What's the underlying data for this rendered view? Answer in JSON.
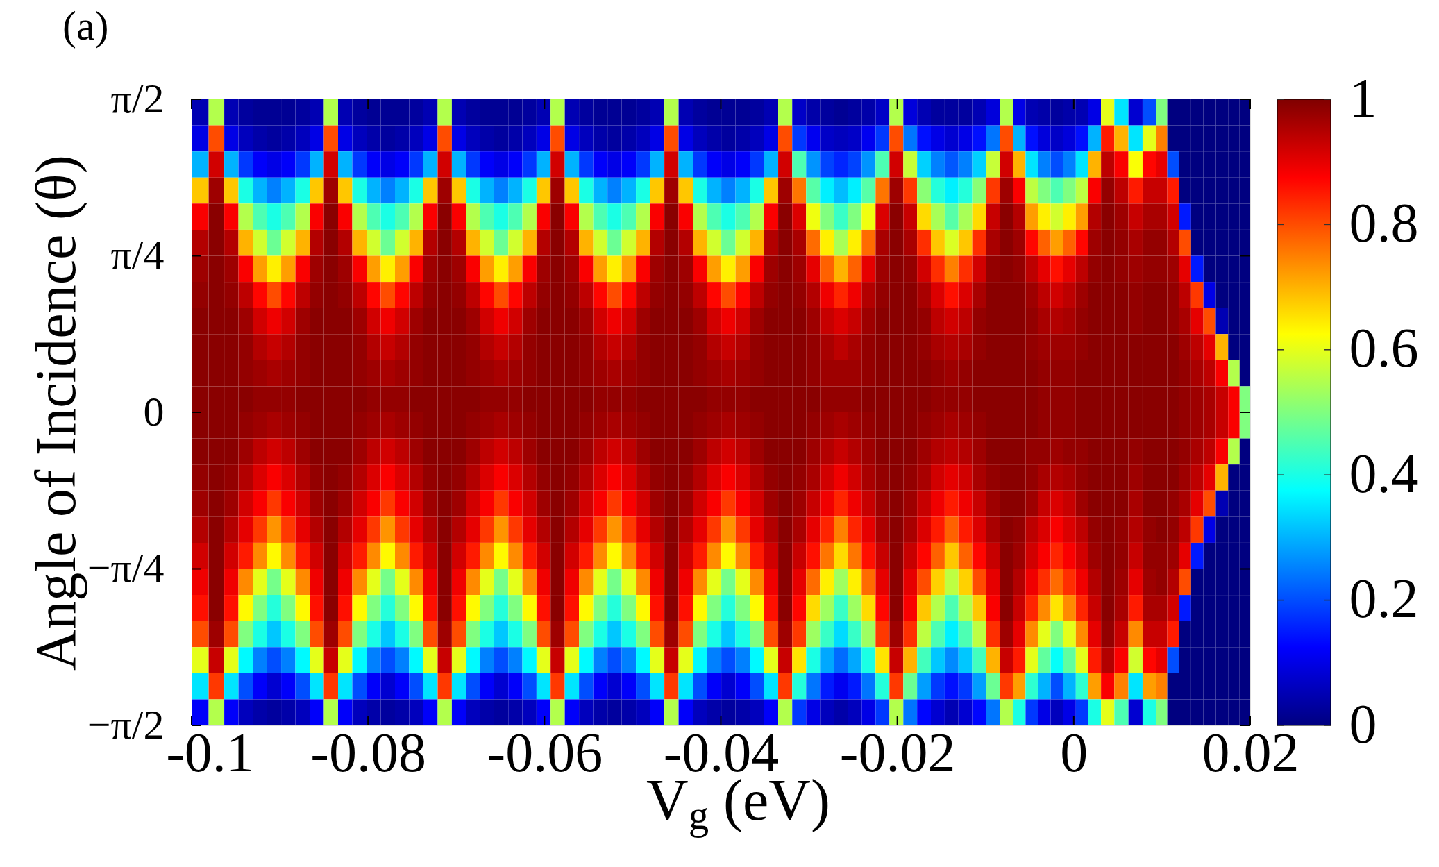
{
  "chart_data": {
    "type": "heatmap",
    "title": "(a)",
    "xlabel": "V$_{g}$ (eV)",
    "ylabel": "Angle of Incidence (θ)",
    "xlim": [
      -0.1,
      0.02
    ],
    "xticks": [
      -0.1,
      -0.08,
      -0.06,
      -0.04,
      -0.02,
      0,
      0.02
    ],
    "ylim": [
      -1.5708,
      1.5708
    ],
    "yticks": [
      {
        "value": -1.5708,
        "label": "−π/2"
      },
      {
        "value": -0.7854,
        "label": "−π/4"
      },
      0,
      {
        "value": 0.7854,
        "label": "π/4"
      },
      {
        "value": 1.5708,
        "label": "π/2"
      }
    ],
    "clim": [
      0,
      1
    ],
    "cticks": [
      0,
      0.2,
      0.4,
      0.6,
      0.8,
      1
    ],
    "x": [
      -0.09903,
      -0.0971,
      -0.09549,
      -0.09388,
      -0.09226,
      -0.09065,
      -0.08904,
      -0.08743,
      -0.08581,
      -0.0842,
      -0.08259,
      -0.08098,
      -0.07936,
      -0.07775,
      -0.07614,
      -0.07453,
      -0.07291,
      -0.0713,
      -0.0697,
      -0.0681,
      -0.0665,
      -0.0649,
      -0.0633,
      -0.0617,
      -0.0601,
      -0.0585,
      -0.05689,
      -0.05528,
      -0.05366,
      -0.05205,
      -0.05044,
      -0.04883,
      -0.04721,
      -0.0456,
      -0.04399,
      -0.04238,
      -0.04076,
      -0.03915,
      -0.03754,
      -0.03593,
      -0.03431,
      -0.0327,
      -0.03113,
      -0.02955,
      -0.02798,
      -0.0264,
      -0.02483,
      -0.02325,
      -0.02168,
      -0.0201,
      -0.01854,
      -0.01698,
      -0.01541,
      -0.01385,
      -0.01229,
      -0.01073,
      -0.00916,
      -0.0076,
      -0.00618,
      -0.00475,
      -0.00333,
      -0.0019,
      -0.00048,
      0.00095,
      0.00238,
      0.0038,
      0.0054,
      0.007,
      0.0086,
      0.01,
      0.0112,
      0.0126,
      0.014,
      0.0154,
      0.0168,
      0.0182,
      0.0194
    ],
    "cells": [
      [
        0.05,
        0.55,
        0.05,
        0.03,
        0.02,
        0.02,
        0.02,
        0.03,
        0.05,
        0.55,
        0.05,
        0.03,
        0.02,
        0.02,
        0.02,
        0.03,
        0.05,
        0.55,
        0.05,
        0.03,
        0.02,
        0.02,
        0.02,
        0.03,
        0.05,
        0.55,
        0.05,
        0.03,
        0.02,
        0.02,
        0.02,
        0.03,
        0.05,
        0.55,
        0.05,
        0.03,
        0.02,
        0.02,
        0.02,
        0.03,
        0.05,
        0.55,
        0.07,
        0.04,
        0.03,
        0.02,
        0.03,
        0.04,
        0.07,
        0.55,
        0.09,
        0.05,
        0.03,
        0.03,
        0.03,
        0.05,
        0.09,
        0.55,
        0.1,
        0.05,
        0.04,
        0.03,
        0.04,
        0.05,
        0.1,
        0.6,
        0.35,
        0.08,
        0.2,
        0.5,
        0,
        0,
        0,
        0,
        0,
        0,
        0
      ],
      [
        0.1,
        0.8,
        0.1,
        0.06,
        0.04,
        0.03,
        0.04,
        0.06,
        0.1,
        0.8,
        0.1,
        0.06,
        0.04,
        0.03,
        0.04,
        0.06,
        0.1,
        0.8,
        0.1,
        0.06,
        0.04,
        0.03,
        0.04,
        0.06,
        0.1,
        0.8,
        0.1,
        0.06,
        0.04,
        0.03,
        0.04,
        0.06,
        0.1,
        0.8,
        0.1,
        0.06,
        0.04,
        0.03,
        0.04,
        0.06,
        0.1,
        0.8,
        0.18,
        0.11,
        0.07,
        0.06,
        0.07,
        0.11,
        0.18,
        0.8,
        0.24,
        0.14,
        0.1,
        0.08,
        0.1,
        0.14,
        0.24,
        0.8,
        0.3,
        0.14,
        0.09,
        0.07,
        0.09,
        0.14,
        0.3,
        0.85,
        0.7,
        0.35,
        0.6,
        0.75,
        0,
        0,
        0,
        0,
        0,
        0,
        0
      ],
      [
        0.3,
        0.92,
        0.3,
        0.18,
        0.12,
        0.1,
        0.12,
        0.18,
        0.3,
        0.92,
        0.3,
        0.18,
        0.12,
        0.1,
        0.12,
        0.18,
        0.3,
        0.92,
        0.3,
        0.18,
        0.12,
        0.1,
        0.12,
        0.18,
        0.3,
        0.92,
        0.3,
        0.18,
        0.12,
        0.1,
        0.12,
        0.18,
        0.3,
        0.92,
        0.3,
        0.18,
        0.12,
        0.1,
        0.12,
        0.18,
        0.3,
        0.92,
        0.45,
        0.27,
        0.19,
        0.16,
        0.19,
        0.27,
        0.45,
        0.92,
        0.57,
        0.33,
        0.25,
        0.21,
        0.25,
        0.33,
        0.57,
        0.92,
        0.7,
        0.35,
        0.25,
        0.2,
        0.25,
        0.35,
        0.7,
        0.94,
        0.88,
        0.62,
        0.87,
        0.9,
        0.2,
        0,
        0,
        0,
        0,
        0,
        0
      ],
      [
        0.68,
        0.97,
        0.68,
        0.4,
        0.3,
        0.25,
        0.3,
        0.4,
        0.68,
        0.97,
        0.68,
        0.4,
        0.3,
        0.25,
        0.3,
        0.4,
        0.68,
        0.97,
        0.68,
        0.4,
        0.3,
        0.25,
        0.3,
        0.4,
        0.68,
        0.97,
        0.68,
        0.4,
        0.3,
        0.25,
        0.3,
        0.4,
        0.68,
        0.97,
        0.68,
        0.4,
        0.3,
        0.25,
        0.3,
        0.4,
        0.68,
        0.97,
        0.76,
        0.46,
        0.36,
        0.31,
        0.36,
        0.46,
        0.76,
        0.97,
        0.82,
        0.51,
        0.41,
        0.36,
        0.41,
        0.51,
        0.82,
        0.97,
        0.88,
        0.56,
        0.5,
        0.45,
        0.5,
        0.56,
        0.88,
        0.98,
        0.94,
        0.85,
        0.93,
        0.93,
        0.85,
        0,
        0,
        0,
        0,
        0,
        0
      ],
      [
        0.88,
        0.99,
        0.88,
        0.55,
        0.45,
        0.4,
        0.45,
        0.55,
        0.88,
        0.99,
        0.88,
        0.55,
        0.45,
        0.4,
        0.45,
        0.55,
        0.88,
        0.99,
        0.88,
        0.55,
        0.45,
        0.4,
        0.45,
        0.55,
        0.88,
        0.99,
        0.88,
        0.55,
        0.45,
        0.4,
        0.45,
        0.55,
        0.88,
        0.99,
        0.88,
        0.55,
        0.45,
        0.4,
        0.45,
        0.55,
        0.88,
        0.99,
        0.91,
        0.61,
        0.5,
        0.43,
        0.5,
        0.61,
        0.91,
        0.99,
        0.93,
        0.66,
        0.54,
        0.46,
        0.54,
        0.66,
        0.93,
        0.99,
        0.95,
        0.72,
        0.64,
        0.58,
        0.64,
        0.72,
        0.95,
        0.99,
        0.97,
        0.93,
        0.96,
        0.96,
        0.92,
        0.15,
        0,
        0,
        0,
        0,
        0
      ],
      [
        0.95,
        0.99,
        0.95,
        0.7,
        0.58,
        0.48,
        0.58,
        0.7,
        0.95,
        0.99,
        0.95,
        0.7,
        0.58,
        0.48,
        0.58,
        0.7,
        0.95,
        0.99,
        0.95,
        0.7,
        0.58,
        0.48,
        0.58,
        0.7,
        0.95,
        0.99,
        0.95,
        0.7,
        0.58,
        0.48,
        0.58,
        0.7,
        0.95,
        0.99,
        0.95,
        0.7,
        0.58,
        0.48,
        0.58,
        0.7,
        0.95,
        0.99,
        0.96,
        0.77,
        0.64,
        0.54,
        0.64,
        0.77,
        0.96,
        0.99,
        0.96,
        0.83,
        0.68,
        0.59,
        0.68,
        0.83,
        0.96,
        0.99,
        0.97,
        0.87,
        0.78,
        0.72,
        0.78,
        0.87,
        0.97,
        0.99,
        0.98,
        0.96,
        0.98,
        0.98,
        0.95,
        0.8,
        0,
        0,
        0,
        0,
        0
      ],
      [
        0.97,
        0.99,
        0.97,
        0.88,
        0.72,
        0.64,
        0.72,
        0.88,
        0.97,
        0.99,
        0.97,
        0.88,
        0.72,
        0.64,
        0.72,
        0.88,
        0.97,
        0.99,
        0.97,
        0.88,
        0.72,
        0.64,
        0.72,
        0.88,
        0.97,
        0.99,
        0.97,
        0.88,
        0.72,
        0.64,
        0.72,
        0.88,
        0.97,
        0.99,
        0.97,
        0.88,
        0.72,
        0.64,
        0.72,
        0.88,
        0.97,
        0.99,
        0.97,
        0.9,
        0.78,
        0.7,
        0.78,
        0.9,
        0.97,
        0.99,
        0.98,
        0.92,
        0.83,
        0.75,
        0.83,
        0.92,
        0.98,
        0.99,
        0.98,
        0.94,
        0.9,
        0.86,
        0.9,
        0.94,
        0.98,
        0.99,
        0.98,
        0.97,
        0.98,
        0.98,
        0.97,
        0.9,
        0.15,
        0,
        0,
        0,
        0
      ],
      [
        0.98,
        0.99,
        0.98,
        0.94,
        0.87,
        0.8,
        0.87,
        0.94,
        0.98,
        0.99,
        0.98,
        0.94,
        0.87,
        0.8,
        0.87,
        0.94,
        0.98,
        0.99,
        0.98,
        0.94,
        0.87,
        0.8,
        0.87,
        0.94,
        0.98,
        0.99,
        0.98,
        0.94,
        0.87,
        0.8,
        0.87,
        0.94,
        0.98,
        0.99,
        0.98,
        0.94,
        0.87,
        0.8,
        0.87,
        0.94,
        0.98,
        0.99,
        0.98,
        0.95,
        0.89,
        0.84,
        0.89,
        0.95,
        0.98,
        0.99,
        0.99,
        0.96,
        0.91,
        0.86,
        0.91,
        0.96,
        0.99,
        0.99,
        0.99,
        0.97,
        0.94,
        0.92,
        0.94,
        0.97,
        0.99,
        0.99,
        0.99,
        0.98,
        0.99,
        0.99,
        0.98,
        0.94,
        0.82,
        0.1,
        0,
        0,
        0
      ],
      [
        0.99,
        0.99,
        0.99,
        0.97,
        0.92,
        0.89,
        0.92,
        0.97,
        0.99,
        0.99,
        0.99,
        0.97,
        0.92,
        0.89,
        0.92,
        0.97,
        0.99,
        0.99,
        0.99,
        0.97,
        0.92,
        0.89,
        0.92,
        0.97,
        0.99,
        0.99,
        0.99,
        0.97,
        0.92,
        0.89,
        0.92,
        0.97,
        0.99,
        0.99,
        0.99,
        0.97,
        0.92,
        0.89,
        0.92,
        0.97,
        0.99,
        0.99,
        0.99,
        0.97,
        0.93,
        0.91,
        0.93,
        0.97,
        0.99,
        0.99,
        0.99,
        0.98,
        0.94,
        0.92,
        0.94,
        0.98,
        0.99,
        0.99,
        0.99,
        0.98,
        0.96,
        0.95,
        0.96,
        0.98,
        0.99,
        0.99,
        0.99,
        0.98,
        0.99,
        0.99,
        0.98,
        0.96,
        0.9,
        0.8,
        0.05,
        0,
        0
      ],
      [
        0.99,
        0.99,
        0.99,
        0.98,
        0.95,
        0.93,
        0.95,
        0.98,
        0.99,
        0.99,
        0.99,
        0.98,
        0.95,
        0.93,
        0.95,
        0.98,
        0.99,
        0.99,
        0.99,
        0.98,
        0.95,
        0.93,
        0.95,
        0.98,
        0.99,
        0.99,
        0.99,
        0.98,
        0.95,
        0.93,
        0.95,
        0.98,
        0.99,
        0.99,
        0.99,
        0.98,
        0.95,
        0.93,
        0.95,
        0.98,
        0.99,
        0.99,
        0.99,
        0.98,
        0.96,
        0.94,
        0.96,
        0.98,
        0.99,
        0.99,
        0.99,
        0.98,
        0.96,
        0.95,
        0.96,
        0.98,
        0.99,
        0.99,
        0.99,
        0.98,
        0.97,
        0.97,
        0.97,
        0.98,
        0.99,
        0.99,
        0.99,
        0.99,
        0.99,
        0.99,
        0.99,
        0.97,
        0.94,
        0.9,
        0.7,
        0,
        0
      ],
      [
        0.99,
        0.99,
        0.99,
        0.98,
        0.97,
        0.96,
        0.97,
        0.98,
        0.99,
        0.99,
        0.99,
        0.98,
        0.97,
        0.96,
        0.97,
        0.98,
        0.99,
        0.99,
        0.99,
        0.98,
        0.97,
        0.96,
        0.97,
        0.98,
        0.99,
        0.99,
        0.99,
        0.98,
        0.97,
        0.96,
        0.97,
        0.98,
        0.99,
        0.99,
        0.99,
        0.98,
        0.97,
        0.96,
        0.97,
        0.98,
        0.99,
        0.99,
        0.99,
        0.98,
        0.97,
        0.97,
        0.97,
        0.98,
        0.99,
        0.99,
        0.99,
        0.99,
        0.98,
        0.97,
        0.98,
        0.99,
        0.99,
        0.99,
        0.99,
        0.99,
        0.98,
        0.98,
        0.98,
        0.99,
        0.99,
        0.99,
        0.99,
        0.99,
        0.99,
        0.99,
        0.99,
        0.98,
        0.96,
        0.94,
        0.88,
        0.55,
        0
      ],
      [
        0.99,
        0.99,
        0.99,
        0.99,
        0.98,
        0.98,
        0.98,
        0.99,
        0.99,
        0.99,
        0.99,
        0.99,
        0.98,
        0.98,
        0.98,
        0.99,
        0.99,
        0.99,
        0.99,
        0.99,
        0.98,
        0.98,
        0.98,
        0.99,
        0.99,
        0.99,
        0.99,
        0.99,
        0.98,
        0.98,
        0.98,
        0.99,
        0.99,
        0.99,
        0.99,
        0.99,
        0.98,
        0.98,
        0.98,
        0.99,
        0.99,
        0.99,
        0.99,
        0.99,
        0.98,
        0.98,
        0.98,
        0.99,
        0.99,
        0.99,
        0.99,
        0.99,
        0.98,
        0.98,
        0.98,
        0.99,
        0.99,
        0.99,
        0.99,
        0.99,
        0.98,
        0.98,
        0.98,
        0.99,
        0.99,
        0.99,
        0.99,
        0.99,
        0.99,
        0.99,
        0.99,
        0.98,
        0.97,
        0.96,
        0.93,
        0.88,
        0.5
      ],
      [
        0.99,
        0.99,
        0.99,
        0.98,
        0.97,
        0.96,
        0.97,
        0.98,
        0.99,
        0.99,
        0.99,
        0.98,
        0.97,
        0.96,
        0.97,
        0.98,
        0.99,
        0.99,
        0.99,
        0.98,
        0.97,
        0.96,
        0.97,
        0.98,
        0.99,
        0.99,
        0.99,
        0.98,
        0.97,
        0.96,
        0.97,
        0.98,
        0.99,
        0.99,
        0.99,
        0.98,
        0.97,
        0.96,
        0.97,
        0.98,
        0.99,
        0.99,
        0.99,
        0.98,
        0.97,
        0.96,
        0.97,
        0.98,
        0.99,
        0.99,
        0.99,
        0.98,
        0.97,
        0.96,
        0.97,
        0.98,
        0.99,
        0.99,
        0.99,
        0.99,
        0.98,
        0.98,
        0.98,
        0.99,
        0.99,
        0.99,
        0.99,
        0.99,
        0.99,
        0.99,
        0.99,
        0.98,
        0.97,
        0.96,
        0.93,
        0.88,
        0.5
      ],
      [
        0.99,
        0.99,
        0.99,
        0.97,
        0.94,
        0.92,
        0.94,
        0.97,
        0.99,
        0.99,
        0.99,
        0.97,
        0.94,
        0.92,
        0.94,
        0.97,
        0.99,
        0.99,
        0.99,
        0.97,
        0.94,
        0.92,
        0.94,
        0.97,
        0.99,
        0.99,
        0.99,
        0.97,
        0.94,
        0.92,
        0.94,
        0.97,
        0.99,
        0.99,
        0.99,
        0.97,
        0.94,
        0.92,
        0.94,
        0.97,
        0.99,
        0.99,
        0.99,
        0.97,
        0.95,
        0.93,
        0.95,
        0.97,
        0.99,
        0.99,
        0.99,
        0.97,
        0.95,
        0.94,
        0.95,
        0.97,
        0.99,
        0.99,
        0.99,
        0.98,
        0.98,
        0.97,
        0.98,
        0.98,
        0.99,
        0.99,
        0.99,
        0.98,
        0.99,
        0.99,
        0.99,
        0.98,
        0.96,
        0.94,
        0.88,
        0.55,
        0
      ],
      [
        0.98,
        0.99,
        0.98,
        0.95,
        0.91,
        0.88,
        0.91,
        0.95,
        0.98,
        0.99,
        0.98,
        0.95,
        0.91,
        0.88,
        0.91,
        0.95,
        0.98,
        0.99,
        0.98,
        0.95,
        0.91,
        0.88,
        0.91,
        0.95,
        0.98,
        0.99,
        0.98,
        0.95,
        0.91,
        0.88,
        0.91,
        0.95,
        0.98,
        0.99,
        0.98,
        0.95,
        0.91,
        0.88,
        0.91,
        0.95,
        0.98,
        0.99,
        0.98,
        0.96,
        0.92,
        0.89,
        0.92,
        0.96,
        0.98,
        0.99,
        0.98,
        0.96,
        0.92,
        0.9,
        0.92,
        0.96,
        0.98,
        0.99,
        0.99,
        0.98,
        0.96,
        0.95,
        0.96,
        0.98,
        0.99,
        0.99,
        0.99,
        0.97,
        0.99,
        0.99,
        0.99,
        0.97,
        0.94,
        0.9,
        0.7,
        0,
        0
      ],
      [
        0.97,
        0.99,
        0.97,
        0.92,
        0.88,
        0.82,
        0.88,
        0.92,
        0.97,
        0.99,
        0.97,
        0.92,
        0.88,
        0.82,
        0.88,
        0.92,
        0.97,
        0.99,
        0.97,
        0.92,
        0.88,
        0.82,
        0.88,
        0.92,
        0.97,
        0.99,
        0.97,
        0.92,
        0.88,
        0.82,
        0.88,
        0.92,
        0.97,
        0.99,
        0.97,
        0.92,
        0.88,
        0.82,
        0.88,
        0.92,
        0.97,
        0.99,
        0.97,
        0.93,
        0.89,
        0.84,
        0.89,
        0.93,
        0.97,
        0.99,
        0.97,
        0.93,
        0.89,
        0.85,
        0.89,
        0.93,
        0.97,
        0.99,
        0.99,
        0.97,
        0.93,
        0.91,
        0.93,
        0.97,
        0.99,
        0.99,
        0.99,
        0.96,
        0.99,
        0.99,
        0.98,
        0.96,
        0.9,
        0.8,
        0.05,
        0,
        0
      ],
      [
        0.95,
        0.99,
        0.95,
        0.9,
        0.82,
        0.73,
        0.82,
        0.9,
        0.95,
        0.99,
        0.95,
        0.9,
        0.82,
        0.73,
        0.82,
        0.9,
        0.95,
        0.99,
        0.95,
        0.9,
        0.82,
        0.73,
        0.82,
        0.9,
        0.95,
        0.99,
        0.95,
        0.9,
        0.82,
        0.73,
        0.82,
        0.9,
        0.95,
        0.99,
        0.95,
        0.9,
        0.82,
        0.73,
        0.82,
        0.9,
        0.95,
        0.99,
        0.96,
        0.9,
        0.84,
        0.75,
        0.84,
        0.9,
        0.96,
        0.99,
        0.96,
        0.91,
        0.85,
        0.78,
        0.85,
        0.91,
        0.96,
        0.99,
        0.98,
        0.94,
        0.91,
        0.88,
        0.91,
        0.94,
        0.98,
        0.99,
        0.98,
        0.95,
        0.98,
        0.99,
        0.98,
        0.94,
        0.82,
        0.1,
        0,
        0,
        0
      ],
      [
        0.92,
        0.99,
        0.92,
        0.85,
        0.74,
        0.63,
        0.74,
        0.85,
        0.92,
        0.99,
        0.92,
        0.85,
        0.74,
        0.63,
        0.74,
        0.85,
        0.92,
        0.99,
        0.92,
        0.85,
        0.74,
        0.63,
        0.74,
        0.85,
        0.92,
        0.99,
        0.92,
        0.85,
        0.74,
        0.63,
        0.74,
        0.85,
        0.92,
        0.99,
        0.92,
        0.85,
        0.74,
        0.63,
        0.74,
        0.85,
        0.92,
        0.99,
        0.93,
        0.86,
        0.76,
        0.66,
        0.76,
        0.86,
        0.93,
        0.99,
        0.93,
        0.87,
        0.78,
        0.68,
        0.78,
        0.87,
        0.93,
        0.99,
        0.97,
        0.92,
        0.88,
        0.84,
        0.88,
        0.92,
        0.97,
        0.99,
        0.98,
        0.93,
        0.98,
        0.98,
        0.97,
        0.9,
        0.15,
        0,
        0,
        0,
        0
      ],
      [
        0.89,
        0.99,
        0.89,
        0.74,
        0.6,
        0.49,
        0.6,
        0.74,
        0.89,
        0.99,
        0.89,
        0.74,
        0.6,
        0.49,
        0.6,
        0.74,
        0.89,
        0.99,
        0.89,
        0.74,
        0.6,
        0.49,
        0.6,
        0.74,
        0.89,
        0.99,
        0.89,
        0.74,
        0.6,
        0.49,
        0.6,
        0.74,
        0.89,
        0.99,
        0.89,
        0.74,
        0.6,
        0.49,
        0.6,
        0.74,
        0.89,
        0.99,
        0.9,
        0.77,
        0.64,
        0.53,
        0.64,
        0.77,
        0.9,
        0.99,
        0.9,
        0.8,
        0.67,
        0.56,
        0.67,
        0.8,
        0.9,
        0.99,
        0.95,
        0.89,
        0.83,
        0.77,
        0.83,
        0.89,
        0.95,
        0.99,
        0.97,
        0.9,
        0.97,
        0.98,
        0.95,
        0.8,
        0,
        0,
        0,
        0,
        0
      ],
      [
        0.86,
        0.99,
        0.86,
        0.63,
        0.5,
        0.41,
        0.5,
        0.63,
        0.86,
        0.99,
        0.86,
        0.63,
        0.5,
        0.41,
        0.5,
        0.63,
        0.86,
        0.99,
        0.86,
        0.63,
        0.5,
        0.41,
        0.5,
        0.63,
        0.86,
        0.99,
        0.86,
        0.63,
        0.5,
        0.41,
        0.5,
        0.63,
        0.86,
        0.99,
        0.86,
        0.63,
        0.5,
        0.41,
        0.5,
        0.63,
        0.86,
        0.99,
        0.87,
        0.66,
        0.53,
        0.43,
        0.53,
        0.66,
        0.87,
        0.99,
        0.88,
        0.68,
        0.55,
        0.45,
        0.55,
        0.68,
        0.88,
        0.99,
        0.93,
        0.84,
        0.74,
        0.65,
        0.74,
        0.84,
        0.93,
        0.99,
        0.96,
        0.85,
        0.96,
        0.96,
        0.92,
        0.15,
        0,
        0,
        0,
        0,
        0
      ],
      [
        0.8,
        0.97,
        0.8,
        0.5,
        0.4,
        0.32,
        0.4,
        0.5,
        0.8,
        0.97,
        0.8,
        0.5,
        0.4,
        0.32,
        0.4,
        0.5,
        0.8,
        0.97,
        0.8,
        0.5,
        0.4,
        0.32,
        0.4,
        0.5,
        0.8,
        0.97,
        0.8,
        0.5,
        0.4,
        0.32,
        0.4,
        0.5,
        0.8,
        0.97,
        0.8,
        0.5,
        0.4,
        0.32,
        0.4,
        0.5,
        0.8,
        0.97,
        0.82,
        0.53,
        0.43,
        0.34,
        0.43,
        0.53,
        0.82,
        0.97,
        0.83,
        0.56,
        0.45,
        0.36,
        0.45,
        0.56,
        0.83,
        0.97,
        0.9,
        0.74,
        0.6,
        0.5,
        0.6,
        0.74,
        0.9,
        0.98,
        0.93,
        0.74,
        0.93,
        0.93,
        0.85,
        0,
        0,
        0,
        0,
        0,
        0
      ],
      [
        0.6,
        0.93,
        0.6,
        0.37,
        0.25,
        0.2,
        0.25,
        0.37,
        0.6,
        0.93,
        0.6,
        0.37,
        0.25,
        0.2,
        0.25,
        0.37,
        0.6,
        0.93,
        0.6,
        0.37,
        0.25,
        0.2,
        0.25,
        0.37,
        0.6,
        0.93,
        0.6,
        0.37,
        0.25,
        0.2,
        0.25,
        0.37,
        0.6,
        0.93,
        0.6,
        0.37,
        0.25,
        0.2,
        0.25,
        0.37,
        0.6,
        0.93,
        0.65,
        0.4,
        0.29,
        0.23,
        0.29,
        0.4,
        0.65,
        0.93,
        0.7,
        0.44,
        0.32,
        0.26,
        0.32,
        0.44,
        0.7,
        0.93,
        0.85,
        0.6,
        0.47,
        0.38,
        0.47,
        0.6,
        0.85,
        0.95,
        0.88,
        0.58,
        0.87,
        0.9,
        0.2,
        0,
        0,
        0,
        0,
        0,
        0
      ],
      [
        0.35,
        0.82,
        0.35,
        0.2,
        0.12,
        0.08,
        0.12,
        0.2,
        0.35,
        0.82,
        0.35,
        0.2,
        0.12,
        0.08,
        0.12,
        0.2,
        0.35,
        0.82,
        0.35,
        0.2,
        0.12,
        0.08,
        0.12,
        0.2,
        0.35,
        0.82,
        0.35,
        0.2,
        0.12,
        0.08,
        0.12,
        0.2,
        0.35,
        0.82,
        0.35,
        0.2,
        0.12,
        0.08,
        0.12,
        0.2,
        0.35,
        0.82,
        0.41,
        0.24,
        0.15,
        0.11,
        0.15,
        0.24,
        0.41,
        0.82,
        0.48,
        0.28,
        0.18,
        0.14,
        0.18,
        0.28,
        0.48,
        0.82,
        0.72,
        0.42,
        0.3,
        0.2,
        0.3,
        0.42,
        0.72,
        0.88,
        0.75,
        0.35,
        0.72,
        0.75,
        0,
        0,
        0,
        0,
        0,
        0,
        0
      ],
      [
        0.12,
        0.55,
        0.12,
        0.06,
        0.04,
        0.03,
        0.04,
        0.06,
        0.12,
        0.55,
        0.12,
        0.06,
        0.04,
        0.03,
        0.04,
        0.06,
        0.12,
        0.55,
        0.12,
        0.06,
        0.04,
        0.03,
        0.04,
        0.06,
        0.12,
        0.55,
        0.12,
        0.06,
        0.04,
        0.03,
        0.04,
        0.06,
        0.12,
        0.55,
        0.12,
        0.06,
        0.04,
        0.03,
        0.04,
        0.06,
        0.12,
        0.55,
        0.18,
        0.1,
        0.06,
        0.04,
        0.06,
        0.1,
        0.18,
        0.55,
        0.24,
        0.13,
        0.08,
        0.05,
        0.08,
        0.13,
        0.24,
        0.55,
        0.4,
        0.18,
        0.1,
        0.06,
        0.1,
        0.18,
        0.4,
        0.6,
        0.45,
        0.08,
        0.4,
        0.5,
        0,
        0,
        0,
        0,
        0,
        0,
        0
      ]
    ]
  }
}
